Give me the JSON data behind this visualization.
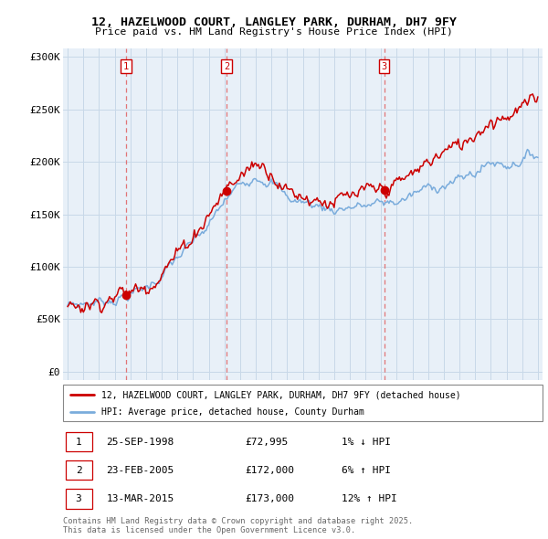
{
  "title_line1": "12, HAZELWOOD COURT, LANGLEY PARK, DURHAM, DH7 9FY",
  "title_line2": "Price paid vs. HM Land Registry's House Price Index (HPI)",
  "yticks": [
    0,
    50000,
    100000,
    150000,
    200000,
    250000,
    300000
  ],
  "ytick_labels": [
    "£0",
    "£50K",
    "£100K",
    "£150K",
    "£200K",
    "£250K",
    "£300K"
  ],
  "sale_dates": [
    1998.73,
    2005.14,
    2015.2
  ],
  "sale_prices": [
    72995,
    172000,
    173000
  ],
  "sale_labels": [
    "1",
    "2",
    "3"
  ],
  "sale_info": [
    {
      "label": "1",
      "date": "25-SEP-1998",
      "price": "£72,995",
      "hpi": "1% ↓ HPI"
    },
    {
      "label": "2",
      "date": "23-FEB-2005",
      "price": "£172,000",
      "hpi": "6% ↑ HPI"
    },
    {
      "label": "3",
      "date": "13-MAR-2015",
      "price": "£173,000",
      "hpi": "12% ↑ HPI"
    }
  ],
  "legend_line1": "12, HAZELWOOD COURT, LANGLEY PARK, DURHAM, DH7 9FY (detached house)",
  "legend_line2": "HPI: Average price, detached house, County Durham",
  "footer": "Contains HM Land Registry data © Crown copyright and database right 2025.\nThis data is licensed under the Open Government Licence v3.0.",
  "red_color": "#cc0000",
  "blue_color": "#7aacdc",
  "dashed_color": "#e06060",
  "chart_bg": "#e8f0f8",
  "grid_color": "#c8d8e8"
}
